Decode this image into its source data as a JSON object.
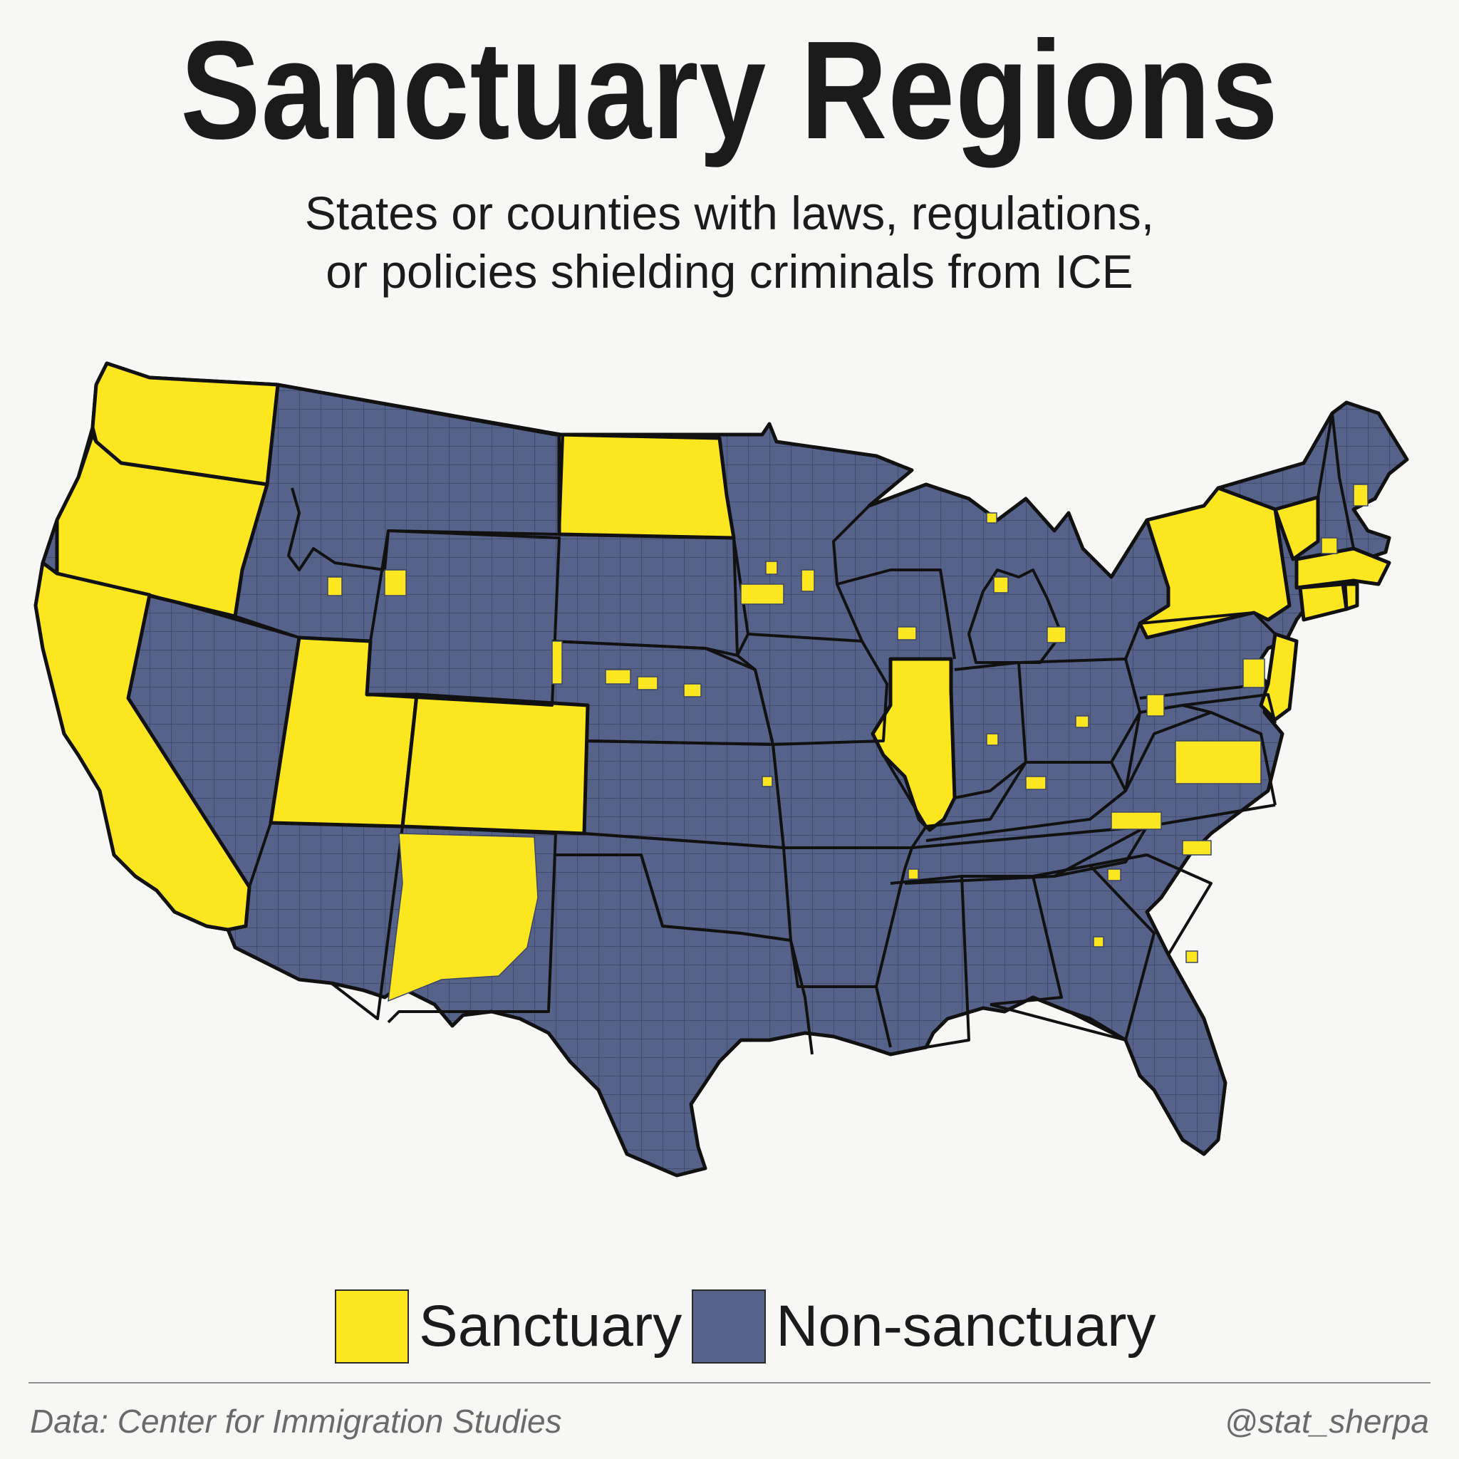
{
  "header": {
    "title": "Sanctuary Regions",
    "subtitle_line1": "States or counties with laws, regulations,",
    "subtitle_line2": "or policies shielding criminals from ICE"
  },
  "colors": {
    "sanctuary": "#fce61f",
    "non_sanctuary": "#566289",
    "border": "#111111",
    "county_line": "#3b4566"
  },
  "legend": [
    {
      "label": "Sanctuary",
      "color": "#fce61f"
    },
    {
      "label": "Non-sanctuary",
      "color": "#566289"
    }
  ],
  "map": {
    "sanctuary_states": [
      "WA",
      "OR",
      "CA",
      "ND",
      "UT",
      "CO",
      "IL",
      "NY",
      "VT",
      "MA",
      "CT",
      "RI",
      "NJ"
    ],
    "partial_sanctuary_states": [
      "ID",
      "WY",
      "NE",
      "IA",
      "MN",
      "WI",
      "MI",
      "IN",
      "OH",
      "KY",
      "PA",
      "MD",
      "VA",
      "NC",
      "SC",
      "GA",
      "ME",
      "NH",
      "NM",
      "KS",
      "TN"
    ]
  },
  "footer": {
    "source": "Data: Center for Immigration Studies",
    "credit": "@stat_sherpa"
  }
}
